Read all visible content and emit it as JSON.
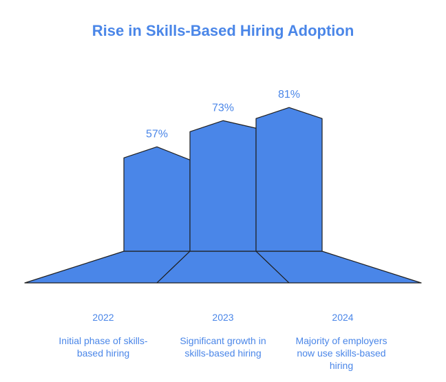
{
  "colors": {
    "accent": "#4a86e8",
    "text": "#4a86e8",
    "outline": "#1f1f1f",
    "background": "#ffffff"
  },
  "chart_data": {
    "type": "bar",
    "title": "Rise in Skills-Based Hiring Adoption",
    "categories": [
      "2022",
      "2023",
      "2024"
    ],
    "values": [
      57,
      73,
      81
    ],
    "value_labels": [
      "57%",
      "73%",
      "81%"
    ],
    "descriptions": [
      [
        "Initial phase of skills-",
        "based hiring"
      ],
      [
        "Significant growth in",
        "skills-based hiring"
      ],
      [
        "Majority of employers",
        "now use skills-based",
        "hiring"
      ]
    ],
    "unit": "%"
  }
}
